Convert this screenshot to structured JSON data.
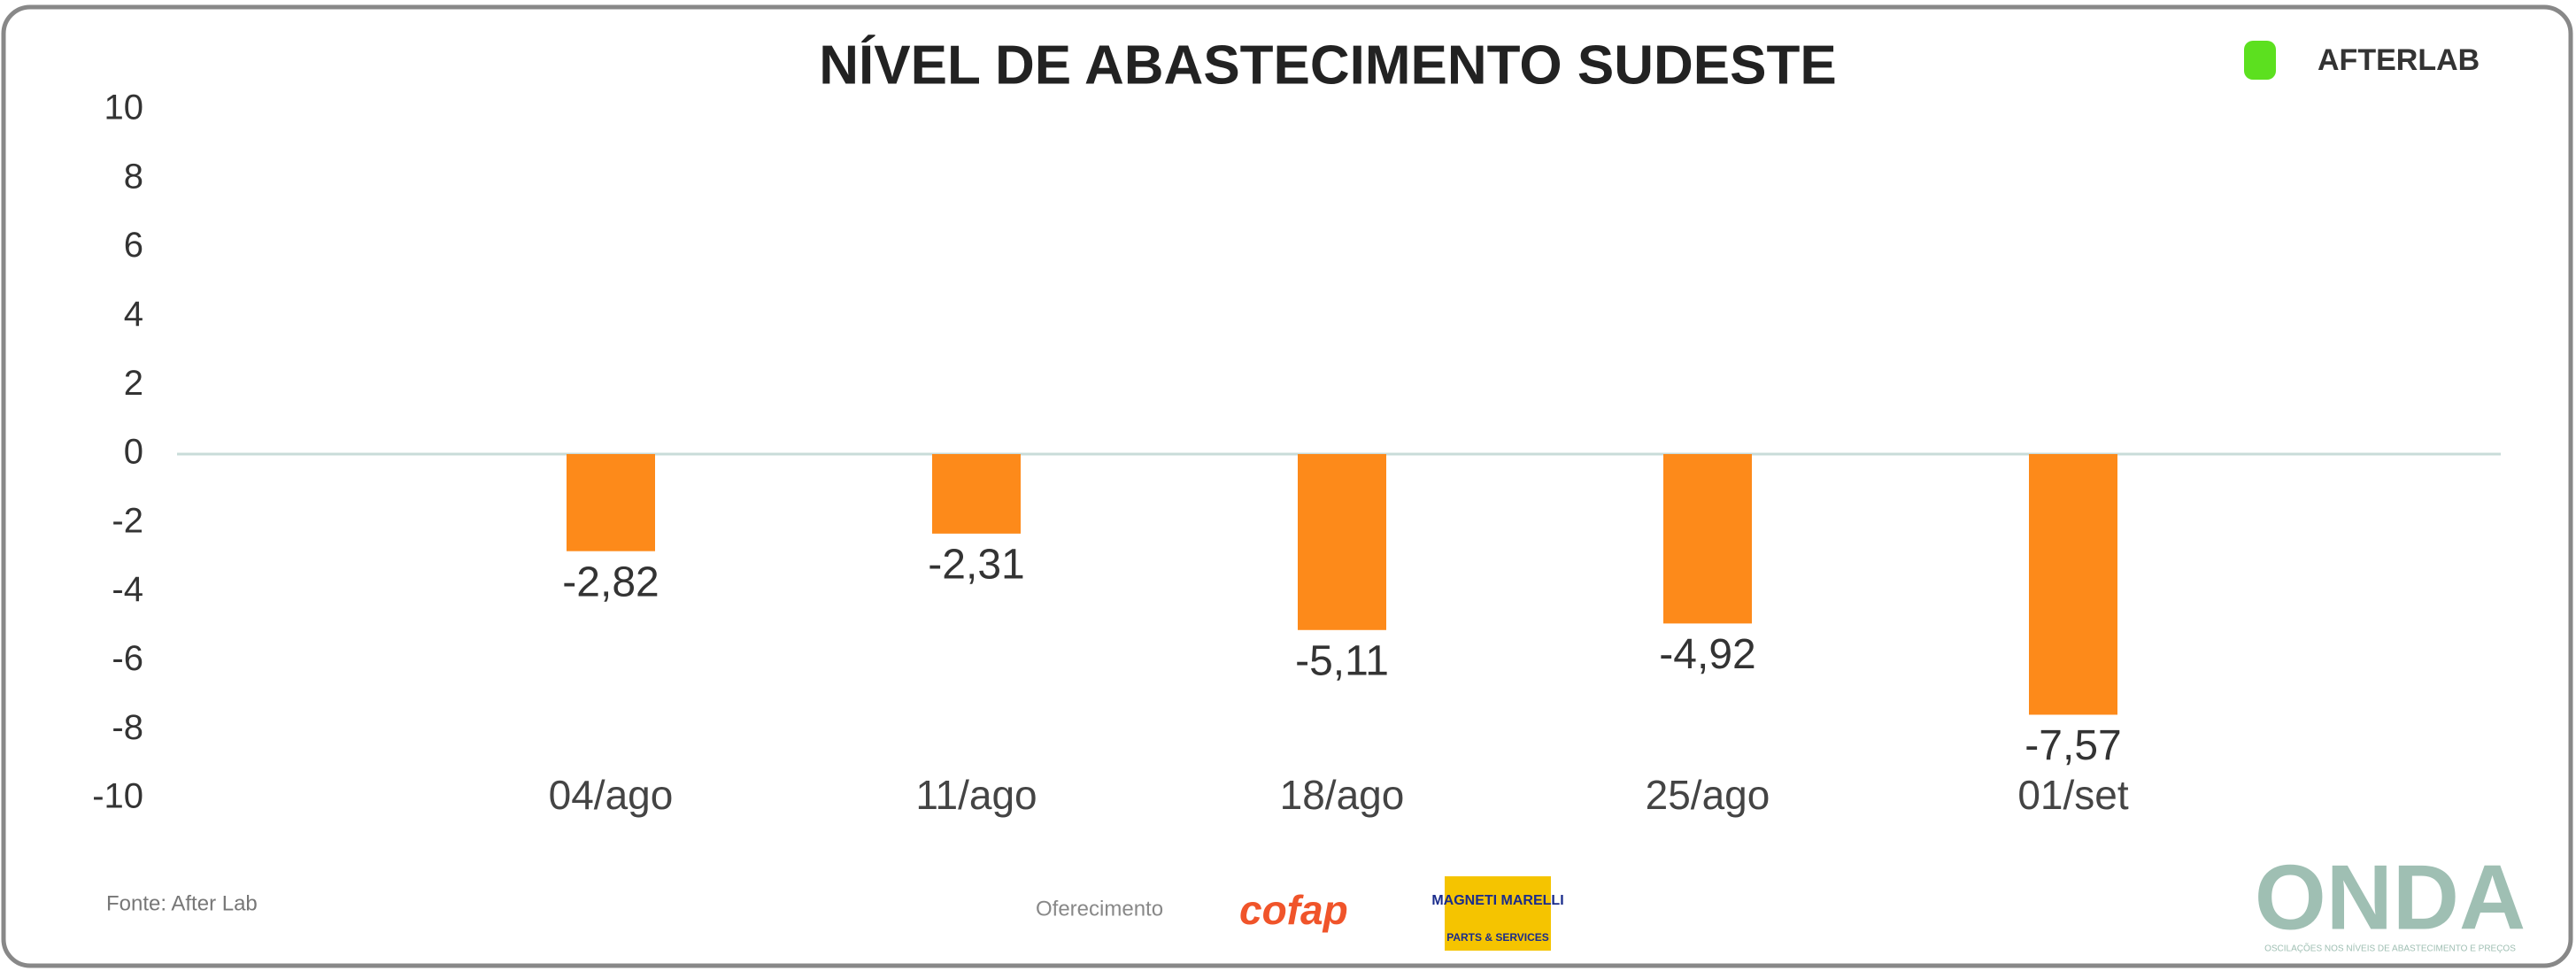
{
  "chart_data": {
    "type": "bar",
    "title": "NÍVEL DE ABASTECIMENTO SUDESTE",
    "categories": [
      "04/ago",
      "11/ago",
      "18/ago",
      "25/ago",
      "01/set"
    ],
    "values": [
      -2.82,
      -2.31,
      -5.11,
      -4.92,
      -7.57
    ],
    "value_labels": [
      "-2,82",
      "-2,31",
      "-5,11",
      "-4,92",
      "-7,57"
    ],
    "color": "#fd8a1a",
    "ylim": [
      -10,
      10
    ],
    "yticks": [
      -10,
      -8,
      -6,
      -4,
      -2,
      0,
      2,
      4,
      6,
      8,
      10
    ],
    "grid": false,
    "source": "Fonte: After Lab",
    "brand": "AFTERLAB",
    "sponsor_label": "Oferecimento",
    "sponsors": [
      "cofap",
      "MAGNETI MARELLI",
      "PARTS & SERVICES"
    ],
    "footer_logo": "ONDA",
    "footer_tagline": "OSCILAÇÕES NOS NÍVEIS DE ABASTECIMENTO E PREÇOS"
  }
}
